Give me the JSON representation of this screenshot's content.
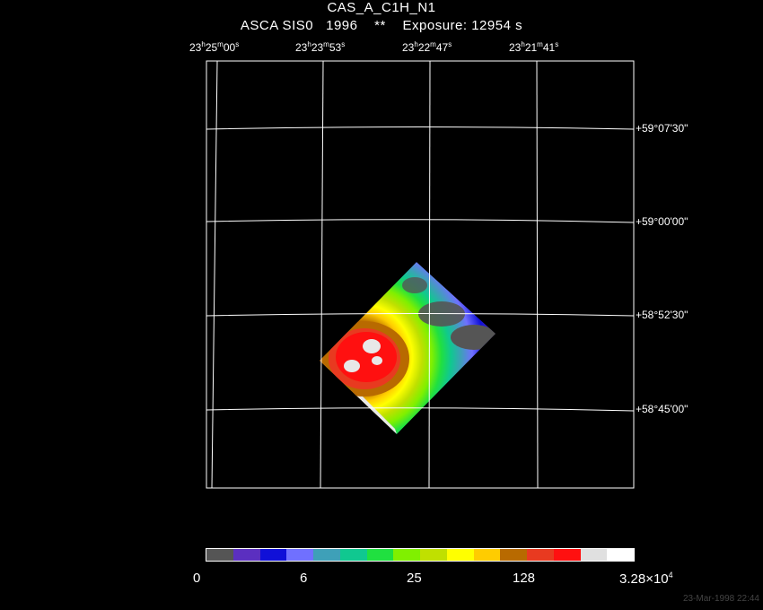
{
  "header": {
    "object": "CAS_A_C1H_N1",
    "mission": "ASCA SIS0",
    "year": "1996",
    "marker": "**",
    "exposure": "Exposure: 12954 s"
  },
  "ra_labels": [
    {
      "h": "23",
      "m": "25",
      "s": "00"
    },
    {
      "h": "23",
      "m": "23",
      "s": "53"
    },
    {
      "h": "23",
      "m": "22",
      "s": "47"
    },
    {
      "h": "23",
      "m": "21",
      "s": "41"
    }
  ],
  "dec_labels": [
    "+59°07'30\"",
    "+59°00'00\"",
    "+58°52'30\"",
    "+58°45'00\""
  ],
  "colorbar": {
    "colors": [
      "#555555",
      "#5b2fc0",
      "#1010d8",
      "#7070ff",
      "#3ea0b8",
      "#10c890",
      "#20e040",
      "#80f000",
      "#c0e000",
      "#ffff00",
      "#ffcc00",
      "#b86a00",
      "#e83a20",
      "#ff1010",
      "#e0e0e0",
      "#ffffff"
    ],
    "tick_labels": [
      "0",
      "6",
      "25",
      "128"
    ],
    "max_base": "3.28×10",
    "max_exp": "4"
  },
  "timestamp": "23-Mar-1998 22:44"
}
